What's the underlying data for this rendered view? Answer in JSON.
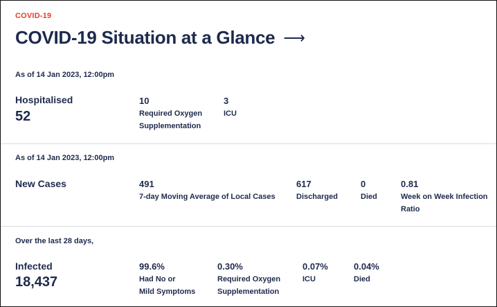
{
  "header": {
    "tag": "COVID-19",
    "title": "COVID-19 Situation at a Glance",
    "arrow": "⟶"
  },
  "hospitalised_section": {
    "as_of": "As of 14 Jan 2023, 12:00pm",
    "label": "Hospitalised",
    "total": "52",
    "stats": [
      {
        "value": "10",
        "desc_line1": "Required Oxygen",
        "desc_line2": "Supplementation"
      },
      {
        "value": "3",
        "desc_line1": "ICU",
        "desc_line2": ""
      }
    ]
  },
  "new_cases_section": {
    "as_of": "As of 14 Jan 2023, 12:00pm",
    "label": "New Cases",
    "stats": [
      {
        "value": "491",
        "desc_line1": "7-day Moving Average of Local Cases",
        "desc_line2": ""
      },
      {
        "value": "617",
        "desc_line1": "Discharged",
        "desc_line2": ""
      },
      {
        "value": "0",
        "desc_line1": "Died",
        "desc_line2": ""
      },
      {
        "value": "0.81",
        "desc_line1": "Week on Week Infection",
        "desc_line2": "Ratio"
      }
    ]
  },
  "infected_section": {
    "period": "Over the last 28 days,",
    "label": "Infected",
    "total": "18,437",
    "stats": [
      {
        "value": "99.6%",
        "desc_line1": "Had No or",
        "desc_line2": "Mild Symptoms"
      },
      {
        "value": "0.30%",
        "desc_line1": "Required Oxygen",
        "desc_line2": "Supplementation"
      },
      {
        "value": "0.07%",
        "desc_line1": "ICU",
        "desc_line2": ""
      },
      {
        "value": "0.04%",
        "desc_line1": "Died",
        "desc_line2": ""
      }
    ]
  }
}
